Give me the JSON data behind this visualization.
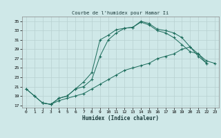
{
  "title": "Courbe de l'humidex pour Hamar Ii",
  "xlabel": "Humidex (Indice chaleur)",
  "bg_color": "#cfe8e8",
  "grid_color": "#b8d0d0",
  "line_color": "#1a6b5a",
  "xlim": [
    -0.5,
    23.5
  ],
  "ylim": [
    16.5,
    36.0
  ],
  "yticks": [
    17,
    19,
    21,
    23,
    25,
    27,
    29,
    31,
    33,
    35
  ],
  "xticks": [
    0,
    1,
    2,
    3,
    4,
    5,
    6,
    7,
    8,
    9,
    10,
    11,
    12,
    13,
    14,
    15,
    16,
    17,
    18,
    19,
    20,
    21,
    22,
    23
  ],
  "line1_x": [
    0,
    1,
    2,
    3,
    4,
    5,
    6,
    7,
    8,
    9,
    10,
    11,
    12,
    13,
    14,
    15,
    16,
    17,
    18,
    19,
    20,
    21,
    22,
    23
  ],
  "line1_y": [
    20.5,
    19.0,
    17.5,
    17.2,
    18.0,
    18.5,
    19.0,
    19.5,
    20.5,
    21.5,
    22.5,
    23.5,
    24.5,
    25.0,
    25.5,
    26.0,
    27.0,
    27.5,
    28.0,
    29.0,
    29.5,
    28.0,
    26.5,
    26.0
  ],
  "line2_x": [
    0,
    1,
    2,
    3,
    4,
    5,
    6,
    7,
    8,
    9,
    10,
    11,
    12,
    13,
    14,
    15,
    16,
    17,
    18,
    19,
    20,
    21,
    22
  ],
  "line2_y": [
    20.5,
    19.0,
    17.5,
    17.2,
    18.5,
    19.0,
    20.5,
    22.0,
    24.0,
    31.0,
    32.0,
    33.2,
    33.5,
    33.7,
    35.0,
    34.5,
    33.3,
    33.0,
    32.5,
    31.5,
    29.5,
    27.5,
    26.0
  ],
  "line3_x": [
    2,
    3,
    4,
    5,
    6,
    7,
    8,
    9,
    10,
    11,
    12,
    13,
    14,
    15,
    16,
    17,
    18,
    19,
    20,
    21,
    22
  ],
  "line3_y": [
    17.5,
    17.2,
    18.5,
    19.0,
    20.5,
    21.0,
    22.5,
    27.5,
    31.0,
    32.5,
    33.5,
    33.7,
    34.8,
    34.2,
    33.0,
    32.5,
    31.5,
    30.0,
    28.5,
    28.0,
    26.0
  ]
}
